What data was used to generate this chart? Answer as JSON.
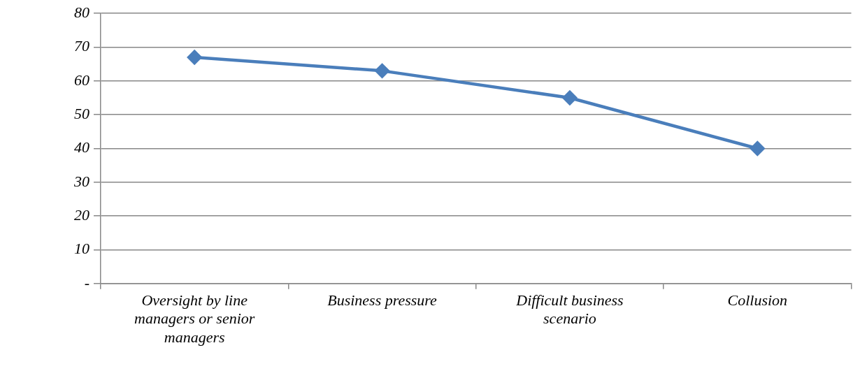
{
  "chart_data": {
    "type": "line",
    "categories": [
      "Oversight by line managers or senior managers",
      "Business pressure",
      "Difficult business scenario",
      "Collusion"
    ],
    "values": [
      67,
      63,
      55,
      40
    ],
    "color": "#4a7ebb",
    "marker": "diamond",
    "ylim": [
      0,
      80
    ],
    "yticks": [
      {
        "value": 0,
        "label": "-"
      },
      10,
      20,
      30,
      40,
      50,
      60,
      70,
      80
    ],
    "grid": "y",
    "legend": false
  }
}
